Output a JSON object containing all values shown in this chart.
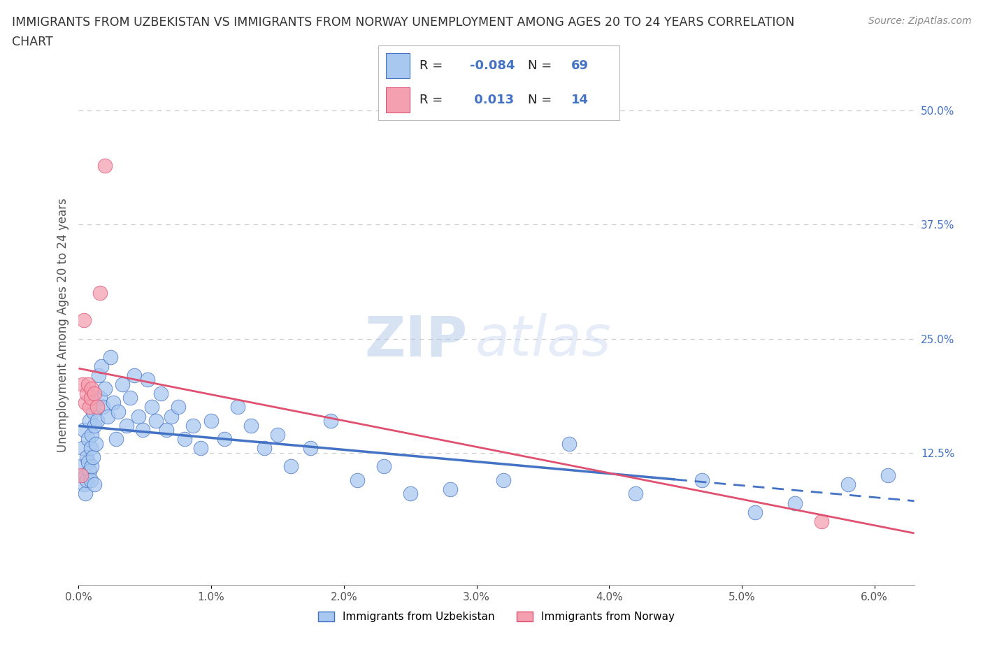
{
  "title_line1": "IMMIGRANTS FROM UZBEKISTAN VS IMMIGRANTS FROM NORWAY UNEMPLOYMENT AMONG AGES 20 TO 24 YEARS CORRELATION",
  "title_line2": "CHART",
  "source": "Source: ZipAtlas.com",
  "ylabel": "Unemployment Among Ages 20 to 24 years",
  "xlim": [
    0.0,
    0.063
  ],
  "ylim": [
    -0.02,
    0.55
  ],
  "uzbekistan_color": "#a8c8f0",
  "norway_color": "#f4a0b0",
  "uzbekistan_line_color": "#4472c4",
  "norway_line_color": "#e05070",
  "uzbekistan_R": -0.084,
  "uzbekistan_N": 69,
  "norway_R": 0.013,
  "norway_N": 14,
  "uzbekistan_x": [
    0.0002,
    0.0003,
    0.0004,
    0.0004,
    0.0005,
    0.0005,
    0.0006,
    0.0006,
    0.0007,
    0.0007,
    0.0008,
    0.0008,
    0.0009,
    0.0009,
    0.001,
    0.001,
    0.0011,
    0.0011,
    0.0012,
    0.0012,
    0.0013,
    0.0014,
    0.0015,
    0.0016,
    0.0017,
    0.0018,
    0.002,
    0.0022,
    0.0024,
    0.0026,
    0.0028,
    0.003,
    0.0033,
    0.0036,
    0.0039,
    0.0042,
    0.0045,
    0.0048,
    0.0052,
    0.0055,
    0.0058,
    0.0062,
    0.0066,
    0.007,
    0.0075,
    0.008,
    0.0086,
    0.0092,
    0.01,
    0.011,
    0.012,
    0.013,
    0.014,
    0.015,
    0.016,
    0.0175,
    0.019,
    0.021,
    0.023,
    0.025,
    0.028,
    0.032,
    0.037,
    0.042,
    0.047,
    0.051,
    0.054,
    0.058,
    0.061
  ],
  "uzbekistan_y": [
    0.11,
    0.13,
    0.09,
    0.15,
    0.1,
    0.08,
    0.12,
    0.095,
    0.14,
    0.115,
    0.105,
    0.16,
    0.13,
    0.095,
    0.145,
    0.11,
    0.17,
    0.12,
    0.155,
    0.09,
    0.135,
    0.16,
    0.21,
    0.185,
    0.22,
    0.175,
    0.195,
    0.165,
    0.23,
    0.18,
    0.14,
    0.17,
    0.2,
    0.155,
    0.185,
    0.21,
    0.165,
    0.15,
    0.205,
    0.175,
    0.16,
    0.19,
    0.15,
    0.165,
    0.175,
    0.14,
    0.155,
    0.13,
    0.16,
    0.14,
    0.175,
    0.155,
    0.13,
    0.145,
    0.11,
    0.13,
    0.16,
    0.095,
    0.11,
    0.08,
    0.085,
    0.095,
    0.135,
    0.08,
    0.095,
    0.06,
    0.07,
    0.09,
    0.1
  ],
  "norway_x": [
    0.0002,
    0.0003,
    0.0004,
    0.0005,
    0.0006,
    0.0007,
    0.0008,
    0.0009,
    0.001,
    0.0012,
    0.0014,
    0.0016,
    0.002,
    0.056
  ],
  "norway_y": [
    0.1,
    0.2,
    0.27,
    0.18,
    0.19,
    0.2,
    0.175,
    0.185,
    0.195,
    0.19,
    0.175,
    0.3,
    0.44,
    0.05
  ],
  "legend_label_uzbekistan": "Immigrants from Uzbekistan",
  "legend_label_norway": "Immigrants from Norway",
  "watermark_zip": "ZIP",
  "watermark_atlas": "atlas",
  "background_color": "#ffffff",
  "grid_color": "#cccccc",
  "title_color": "#333333",
  "right_axis_color": "#4472c4",
  "x_tick_vals": [
    0.0,
    0.01,
    0.02,
    0.03,
    0.04,
    0.05,
    0.06
  ],
  "x_tick_labels": [
    "0.0%",
    "1.0%",
    "2.0%",
    "3.0%",
    "4.0%",
    "5.0%",
    "6.0%"
  ],
  "y_tick_vals": [
    0.125,
    0.25,
    0.375,
    0.5
  ],
  "y_tick_labels": [
    "12.5%",
    "25.0%",
    "37.5%",
    "50.0%"
  ]
}
